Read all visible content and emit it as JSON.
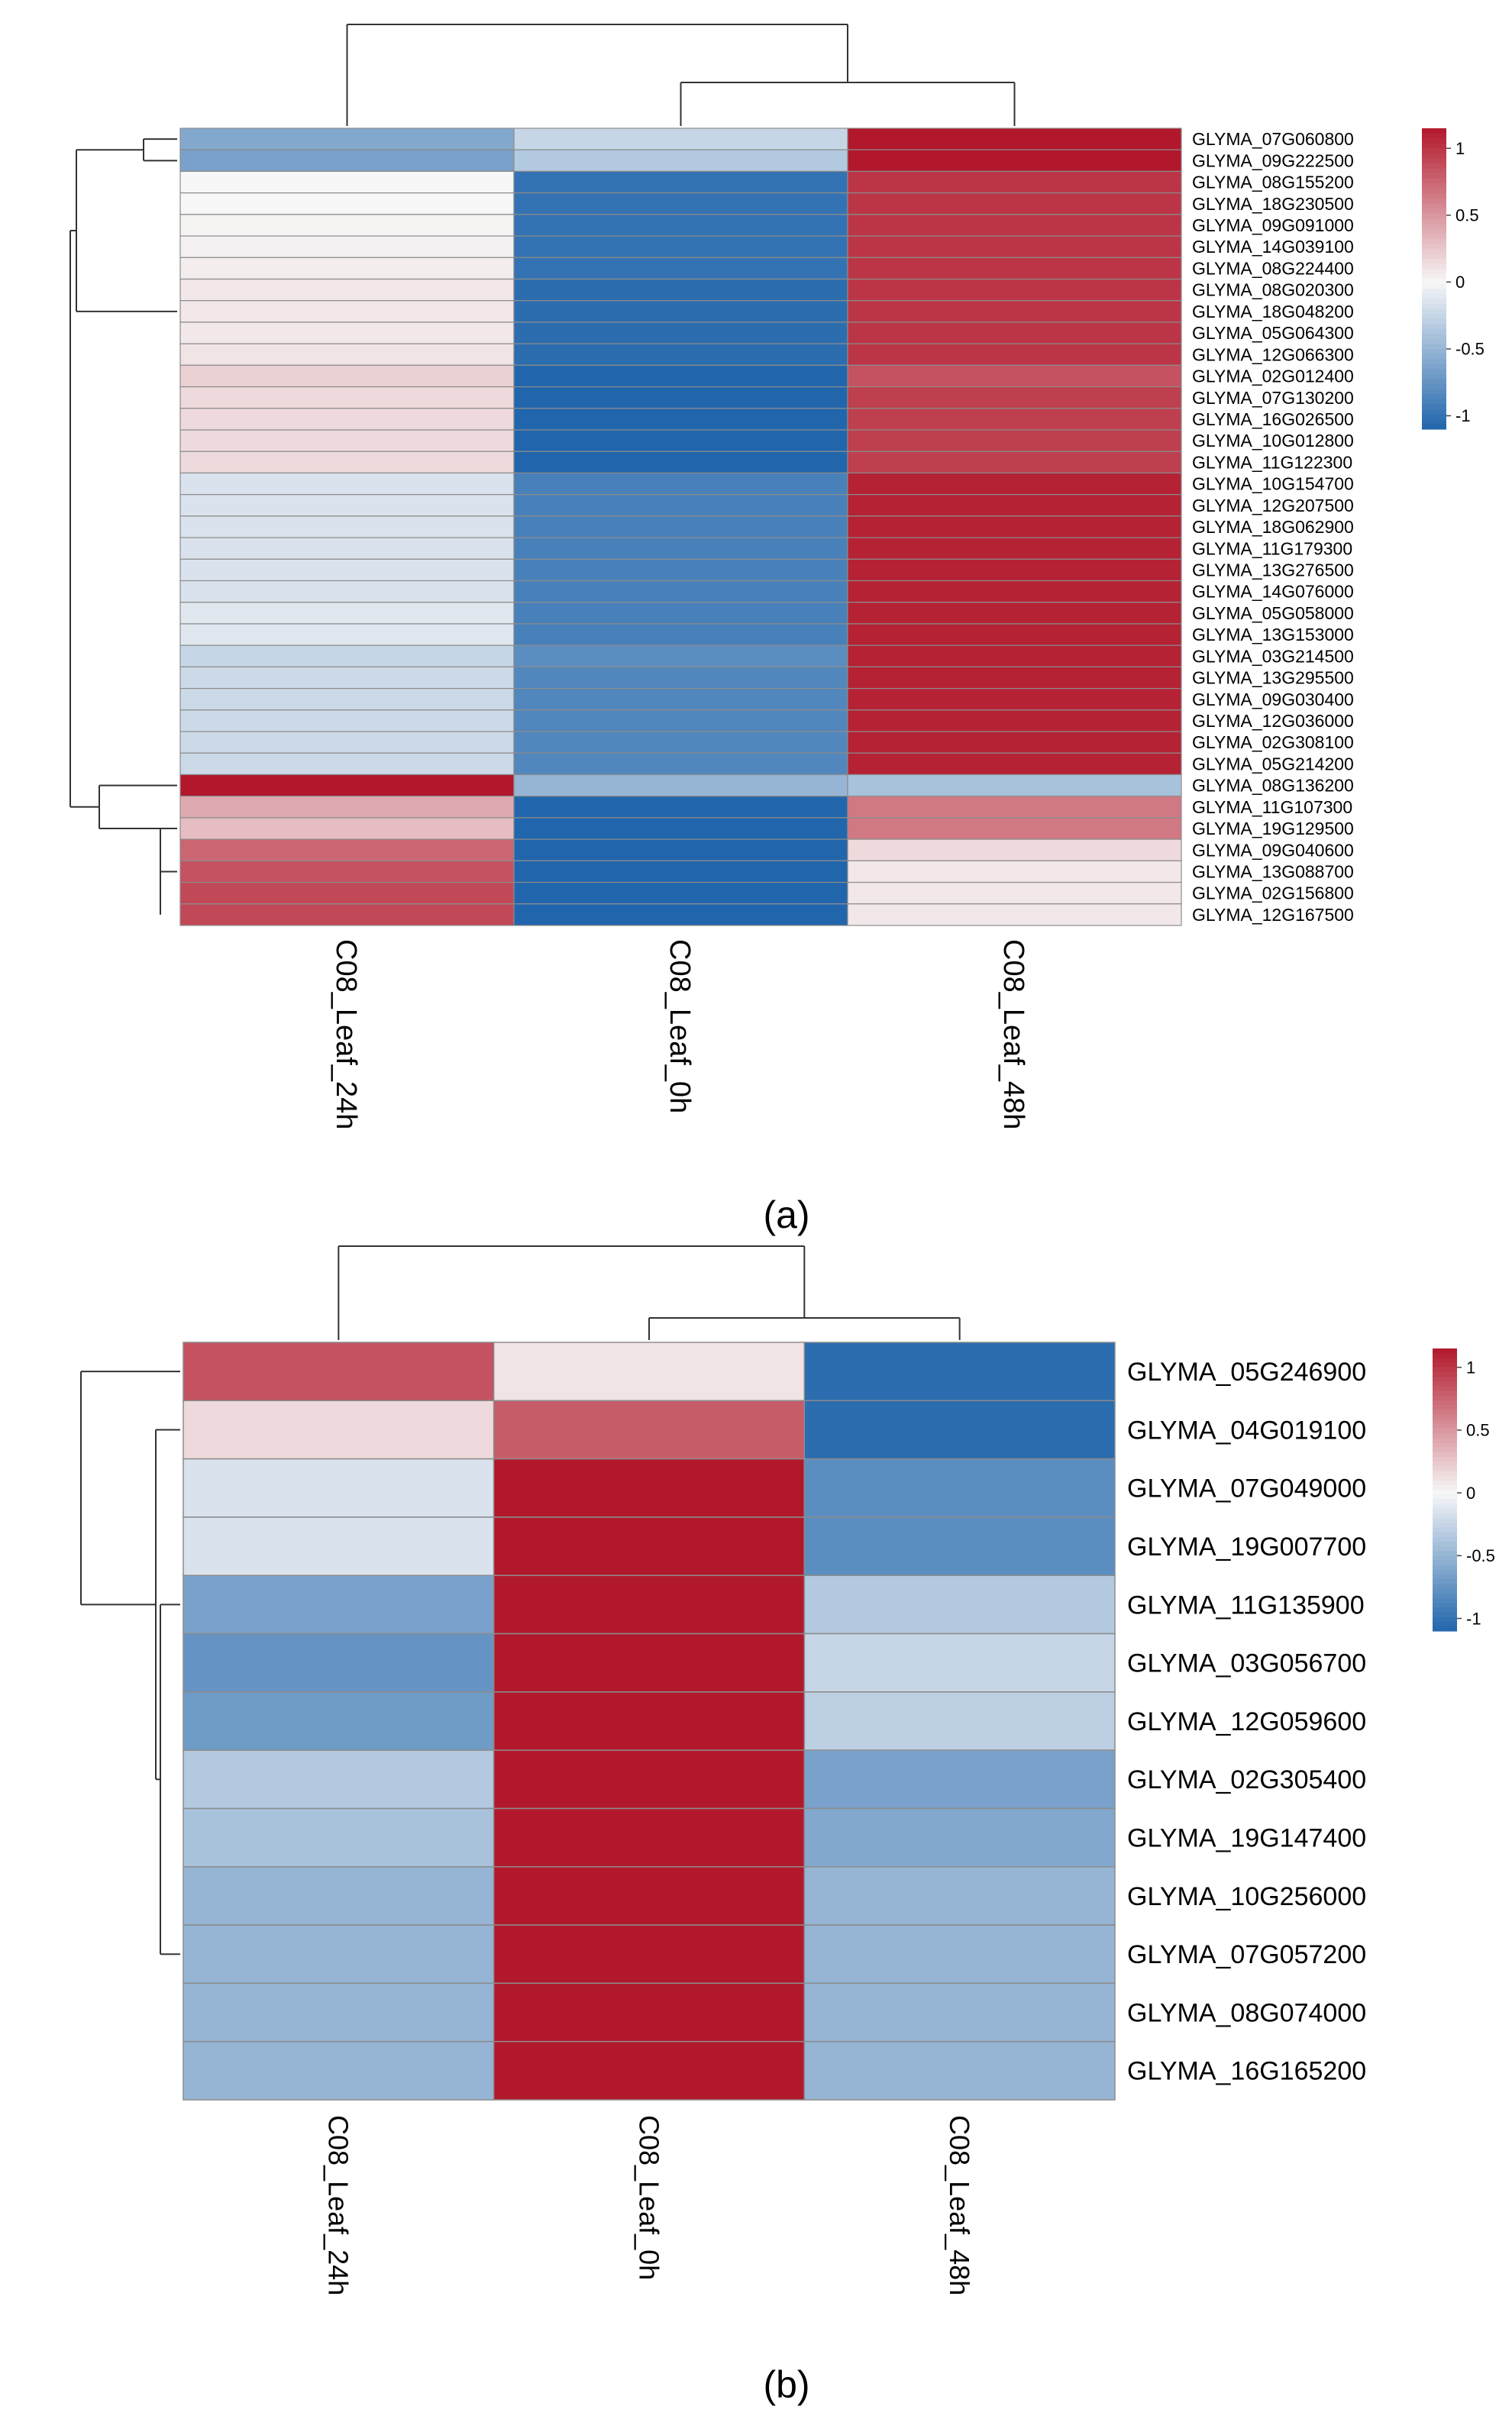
{
  "chart_data": [
    {
      "panel": "a",
      "panel_label": "(a)",
      "type": "heatmap",
      "columns": [
        "C08_Leaf_24h",
        "C08_Leaf_0h",
        "C08_Leaf_48h"
      ],
      "rows": [
        "GLYMA_07G060800",
        "GLYMA_09G222500",
        "GLYMA_08G155200",
        "GLYMA_18G230500",
        "GLYMA_09G091000",
        "GLYMA_14G039100",
        "GLYMA_08G224400",
        "GLYMA_08G020300",
        "GLYMA_18G048200",
        "GLYMA_05G064300",
        "GLYMA_12G066300",
        "GLYMA_02G012400",
        "GLYMA_07G130200",
        "GLYMA_16G026500",
        "GLYMA_10G012800",
        "GLYMA_11G122300",
        "GLYMA_10G154700",
        "GLYMA_12G207500",
        "GLYMA_18G062900",
        "GLYMA_11G179300",
        "GLYMA_13G276500",
        "GLYMA_14G076000",
        "GLYMA_05G058000",
        "GLYMA_13G153000",
        "GLYMA_03G214500",
        "GLYMA_13G295500",
        "GLYMA_09G030400",
        "GLYMA_12G036000",
        "GLYMA_02G308100",
        "GLYMA_05G214200",
        "GLYMA_08G136200",
        "GLYMA_11G107300",
        "GLYMA_19G129500",
        "GLYMA_09G040600",
        "GLYMA_13G088700",
        "GLYMA_02G156800",
        "GLYMA_12G167500"
      ],
      "values": [
        [
          -0.6,
          -0.25,
          1.15
        ],
        [
          -0.65,
          -0.35,
          1.15
        ],
        [
          0.0,
          -1.0,
          1.0
        ],
        [
          0.0,
          -1.0,
          1.0
        ],
        [
          0.02,
          -1.0,
          1.0
        ],
        [
          0.03,
          -1.0,
          1.0
        ],
        [
          0.05,
          -1.0,
          1.0
        ],
        [
          0.08,
          -1.05,
          1.0
        ],
        [
          0.08,
          -1.05,
          1.0
        ],
        [
          0.08,
          -1.05,
          1.0
        ],
        [
          0.1,
          -1.05,
          1.0
        ],
        [
          0.2,
          -1.1,
          0.85
        ],
        [
          0.15,
          -1.1,
          0.95
        ],
        [
          0.15,
          -1.1,
          0.95
        ],
        [
          0.15,
          -1.1,
          0.95
        ],
        [
          0.15,
          -1.1,
          0.95
        ],
        [
          -0.15,
          -0.9,
          1.1
        ],
        [
          -0.15,
          -0.9,
          1.1
        ],
        [
          -0.15,
          -0.9,
          1.1
        ],
        [
          -0.15,
          -0.9,
          1.1
        ],
        [
          -0.15,
          -0.9,
          1.1
        ],
        [
          -0.15,
          -0.9,
          1.1
        ],
        [
          -0.12,
          -0.9,
          1.1
        ],
        [
          -0.12,
          -0.9,
          1.1
        ],
        [
          -0.25,
          -0.8,
          1.1
        ],
        [
          -0.22,
          -0.85,
          1.1
        ],
        [
          -0.22,
          -0.85,
          1.1
        ],
        [
          -0.22,
          -0.85,
          1.1
        ],
        [
          -0.22,
          -0.85,
          1.1
        ],
        [
          -0.22,
          -0.85,
          1.1
        ],
        [
          1.15,
          -0.5,
          -0.4
        ],
        [
          0.4,
          -1.1,
          0.65
        ],
        [
          0.3,
          -1.1,
          0.65
        ],
        [
          0.75,
          -1.15,
          0.15
        ],
        [
          0.85,
          -1.15,
          0.08
        ],
        [
          0.9,
          -1.15,
          0.08
        ],
        [
          0.9,
          -1.15,
          0.08
        ]
      ],
      "color_scale": {
        "low": "#2166ac",
        "mid": "#f7f7f7",
        "high": "#b2182b"
      },
      "colorbar": {
        "ticks": [
          "1",
          "0.5",
          "0",
          "-0.5",
          "-1"
        ],
        "range": [
          -1.1,
          1.15
        ]
      }
    },
    {
      "panel": "b",
      "panel_label": "(b)",
      "type": "heatmap",
      "columns": [
        "C08_Leaf_24h",
        "C08_Leaf_0h",
        "C08_Leaf_48h"
      ],
      "rows": [
        "GLYMA_05G246900",
        "GLYMA_04G019100",
        "GLYMA_07G049000",
        "GLYMA_19G007700",
        "GLYMA_11G135900",
        "GLYMA_03G056700",
        "GLYMA_12G059600",
        "GLYMA_02G305400",
        "GLYMA_19G147400",
        "GLYMA_10G256000",
        "GLYMA_07G057200",
        "GLYMA_08G074000",
        "GLYMA_16G165200"
      ],
      "values": [
        [
          0.85,
          0.1,
          -1.05
        ],
        [
          0.15,
          0.8,
          -1.05
        ],
        [
          -0.15,
          1.15,
          -0.8
        ],
        [
          -0.15,
          1.15,
          -0.8
        ],
        [
          -0.65,
          1.15,
          -0.35
        ],
        [
          -0.75,
          1.15,
          -0.25
        ],
        [
          -0.7,
          1.15,
          -0.3
        ],
        [
          -0.35,
          1.15,
          -0.65
        ],
        [
          -0.4,
          1.15,
          -0.6
        ],
        [
          -0.5,
          1.15,
          -0.5
        ],
        [
          -0.5,
          1.15,
          -0.5
        ],
        [
          -0.5,
          1.15,
          -0.5
        ],
        [
          -0.5,
          1.15,
          -0.5
        ]
      ],
      "color_scale": {
        "low": "#2166ac",
        "mid": "#f7f7f7",
        "high": "#b2182b"
      },
      "colorbar": {
        "ticks": [
          "1",
          "0.5",
          "0",
          "-0.5",
          "-1"
        ],
        "range": [
          -1.1,
          1.15
        ]
      }
    }
  ]
}
